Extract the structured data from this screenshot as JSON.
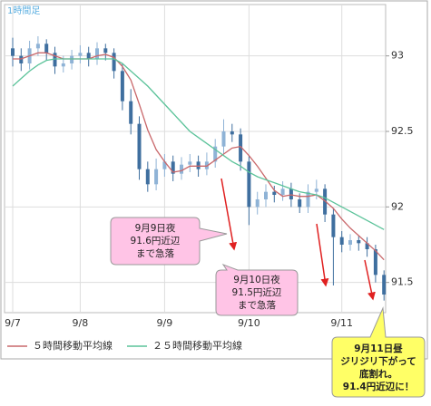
{
  "chart_data": {
    "type": "candlestick",
    "label": "1時間足",
    "categories": [
      "9/7",
      null,
      null,
      null,
      null,
      null,
      null,
      null,
      "9/8",
      null,
      null,
      null,
      null,
      null,
      null,
      null,
      null,
      null,
      "9/9",
      null,
      null,
      null,
      null,
      null,
      null,
      null,
      null,
      null,
      "9/10",
      null,
      null,
      null,
      null,
      null,
      null,
      null,
      null,
      null,
      null,
      "9/11",
      null,
      null,
      null,
      null,
      null
    ],
    "open": [
      93.05,
      93.0,
      92.95,
      93.05,
      93.08,
      93.02,
      92.93,
      92.95,
      93.0,
      93.02,
      92.98,
      93.05,
      93.02,
      92.9,
      92.7,
      92.55,
      92.25,
      92.15,
      92.25,
      92.3,
      92.22,
      92.28,
      92.3,
      92.25,
      92.3,
      92.4,
      92.5,
      92.48,
      92.3,
      92.0,
      92.05,
      92.1,
      92.08,
      92.12,
      92.05,
      92.0,
      92.1,
      92.12,
      91.95,
      91.8,
      91.75,
      91.78,
      91.76,
      91.72,
      91.55
    ],
    "high": [
      93.12,
      93.05,
      93.1,
      93.13,
      93.11,
      93.06,
      93.0,
      93.04,
      93.07,
      93.06,
      93.09,
      93.08,
      93.05,
      92.95,
      92.78,
      92.6,
      92.3,
      92.32,
      92.35,
      92.34,
      92.33,
      92.35,
      92.34,
      92.36,
      92.45,
      92.58,
      92.55,
      92.52,
      92.34,
      92.1,
      92.15,
      92.14,
      92.17,
      92.16,
      92.09,
      92.15,
      92.18,
      92.15,
      91.99,
      91.84,
      91.82,
      91.81,
      91.8,
      91.75,
      91.58
    ],
    "low": [
      92.93,
      92.9,
      92.91,
      93.0,
      92.97,
      92.88,
      92.89,
      92.91,
      92.95,
      92.93,
      92.94,
      92.97,
      92.85,
      92.64,
      92.48,
      92.18,
      92.1,
      92.11,
      92.2,
      92.17,
      92.18,
      92.23,
      92.2,
      92.21,
      92.26,
      92.35,
      92.43,
      92.24,
      91.88,
      91.95,
      92.0,
      92.03,
      92.04,
      92.0,
      91.96,
      91.96,
      92.05,
      91.9,
      91.48,
      91.7,
      91.71,
      91.71,
      91.67,
      91.5,
      91.38
    ],
    "close": [
      93.0,
      92.95,
      93.05,
      93.08,
      93.02,
      92.93,
      92.95,
      93.0,
      93.02,
      92.98,
      93.05,
      93.02,
      92.9,
      92.7,
      92.55,
      92.25,
      92.15,
      92.25,
      92.3,
      92.22,
      92.28,
      92.3,
      92.25,
      92.3,
      92.4,
      92.5,
      92.48,
      92.3,
      92.0,
      92.05,
      92.1,
      92.08,
      92.12,
      92.05,
      92.0,
      92.1,
      92.12,
      91.95,
      91.8,
      91.75,
      91.78,
      91.76,
      91.72,
      91.55,
      91.42
    ],
    "up_color": "#8fb3d6",
    "down_color": "#3f6f9f",
    "series": [
      {
        "name": "５時間移動平均線",
        "color": "#c9686b",
        "values": [
          92.98,
          92.98,
          93.0,
          93.02,
          93.02,
          93.0,
          92.98,
          92.98,
          92.98,
          92.98,
          93.0,
          93.01,
          92.99,
          92.93,
          92.84,
          92.68,
          92.51,
          92.38,
          92.3,
          92.23,
          92.24,
          92.27,
          92.27,
          92.27,
          92.31,
          92.35,
          92.39,
          92.4,
          92.34,
          92.27,
          92.19,
          92.11,
          92.07,
          92.08,
          92.07,
          92.07,
          92.08,
          92.04,
          91.99,
          91.92,
          91.86,
          91.81,
          91.76,
          91.71,
          91.65
        ]
      },
      {
        "name": "２５時間移動平均線",
        "color": "#5cc39a",
        "values": [
          92.8,
          92.85,
          92.9,
          92.94,
          92.97,
          92.98,
          92.98,
          92.98,
          92.98,
          92.98,
          92.98,
          92.98,
          92.98,
          92.95,
          92.9,
          92.85,
          92.8,
          92.74,
          92.68,
          92.62,
          92.56,
          92.5,
          92.46,
          92.42,
          92.38,
          92.34,
          92.3,
          92.27,
          92.23,
          92.2,
          92.18,
          92.16,
          92.14,
          92.12,
          92.1,
          92.09,
          92.08,
          92.06,
          92.03,
          92.0,
          91.97,
          91.94,
          91.91,
          91.88,
          91.85
        ]
      }
    ],
    "ylim": [
      91.3,
      93.34
    ],
    "yticks": [
      91.5,
      92,
      92.5,
      93
    ],
    "grid": true,
    "annotations": [
      {
        "lines": [
          "9月9日夜",
          "91.6円近辺",
          "まで急落"
        ]
      },
      {
        "lines": [
          "9月10日夜",
          "91.5円近辺",
          "まで急落"
        ]
      },
      {
        "lines": [
          "9月11日昼",
          "ジリジリ下がって",
          "底割れ。",
          "91.4円近辺に！"
        ]
      }
    ]
  }
}
